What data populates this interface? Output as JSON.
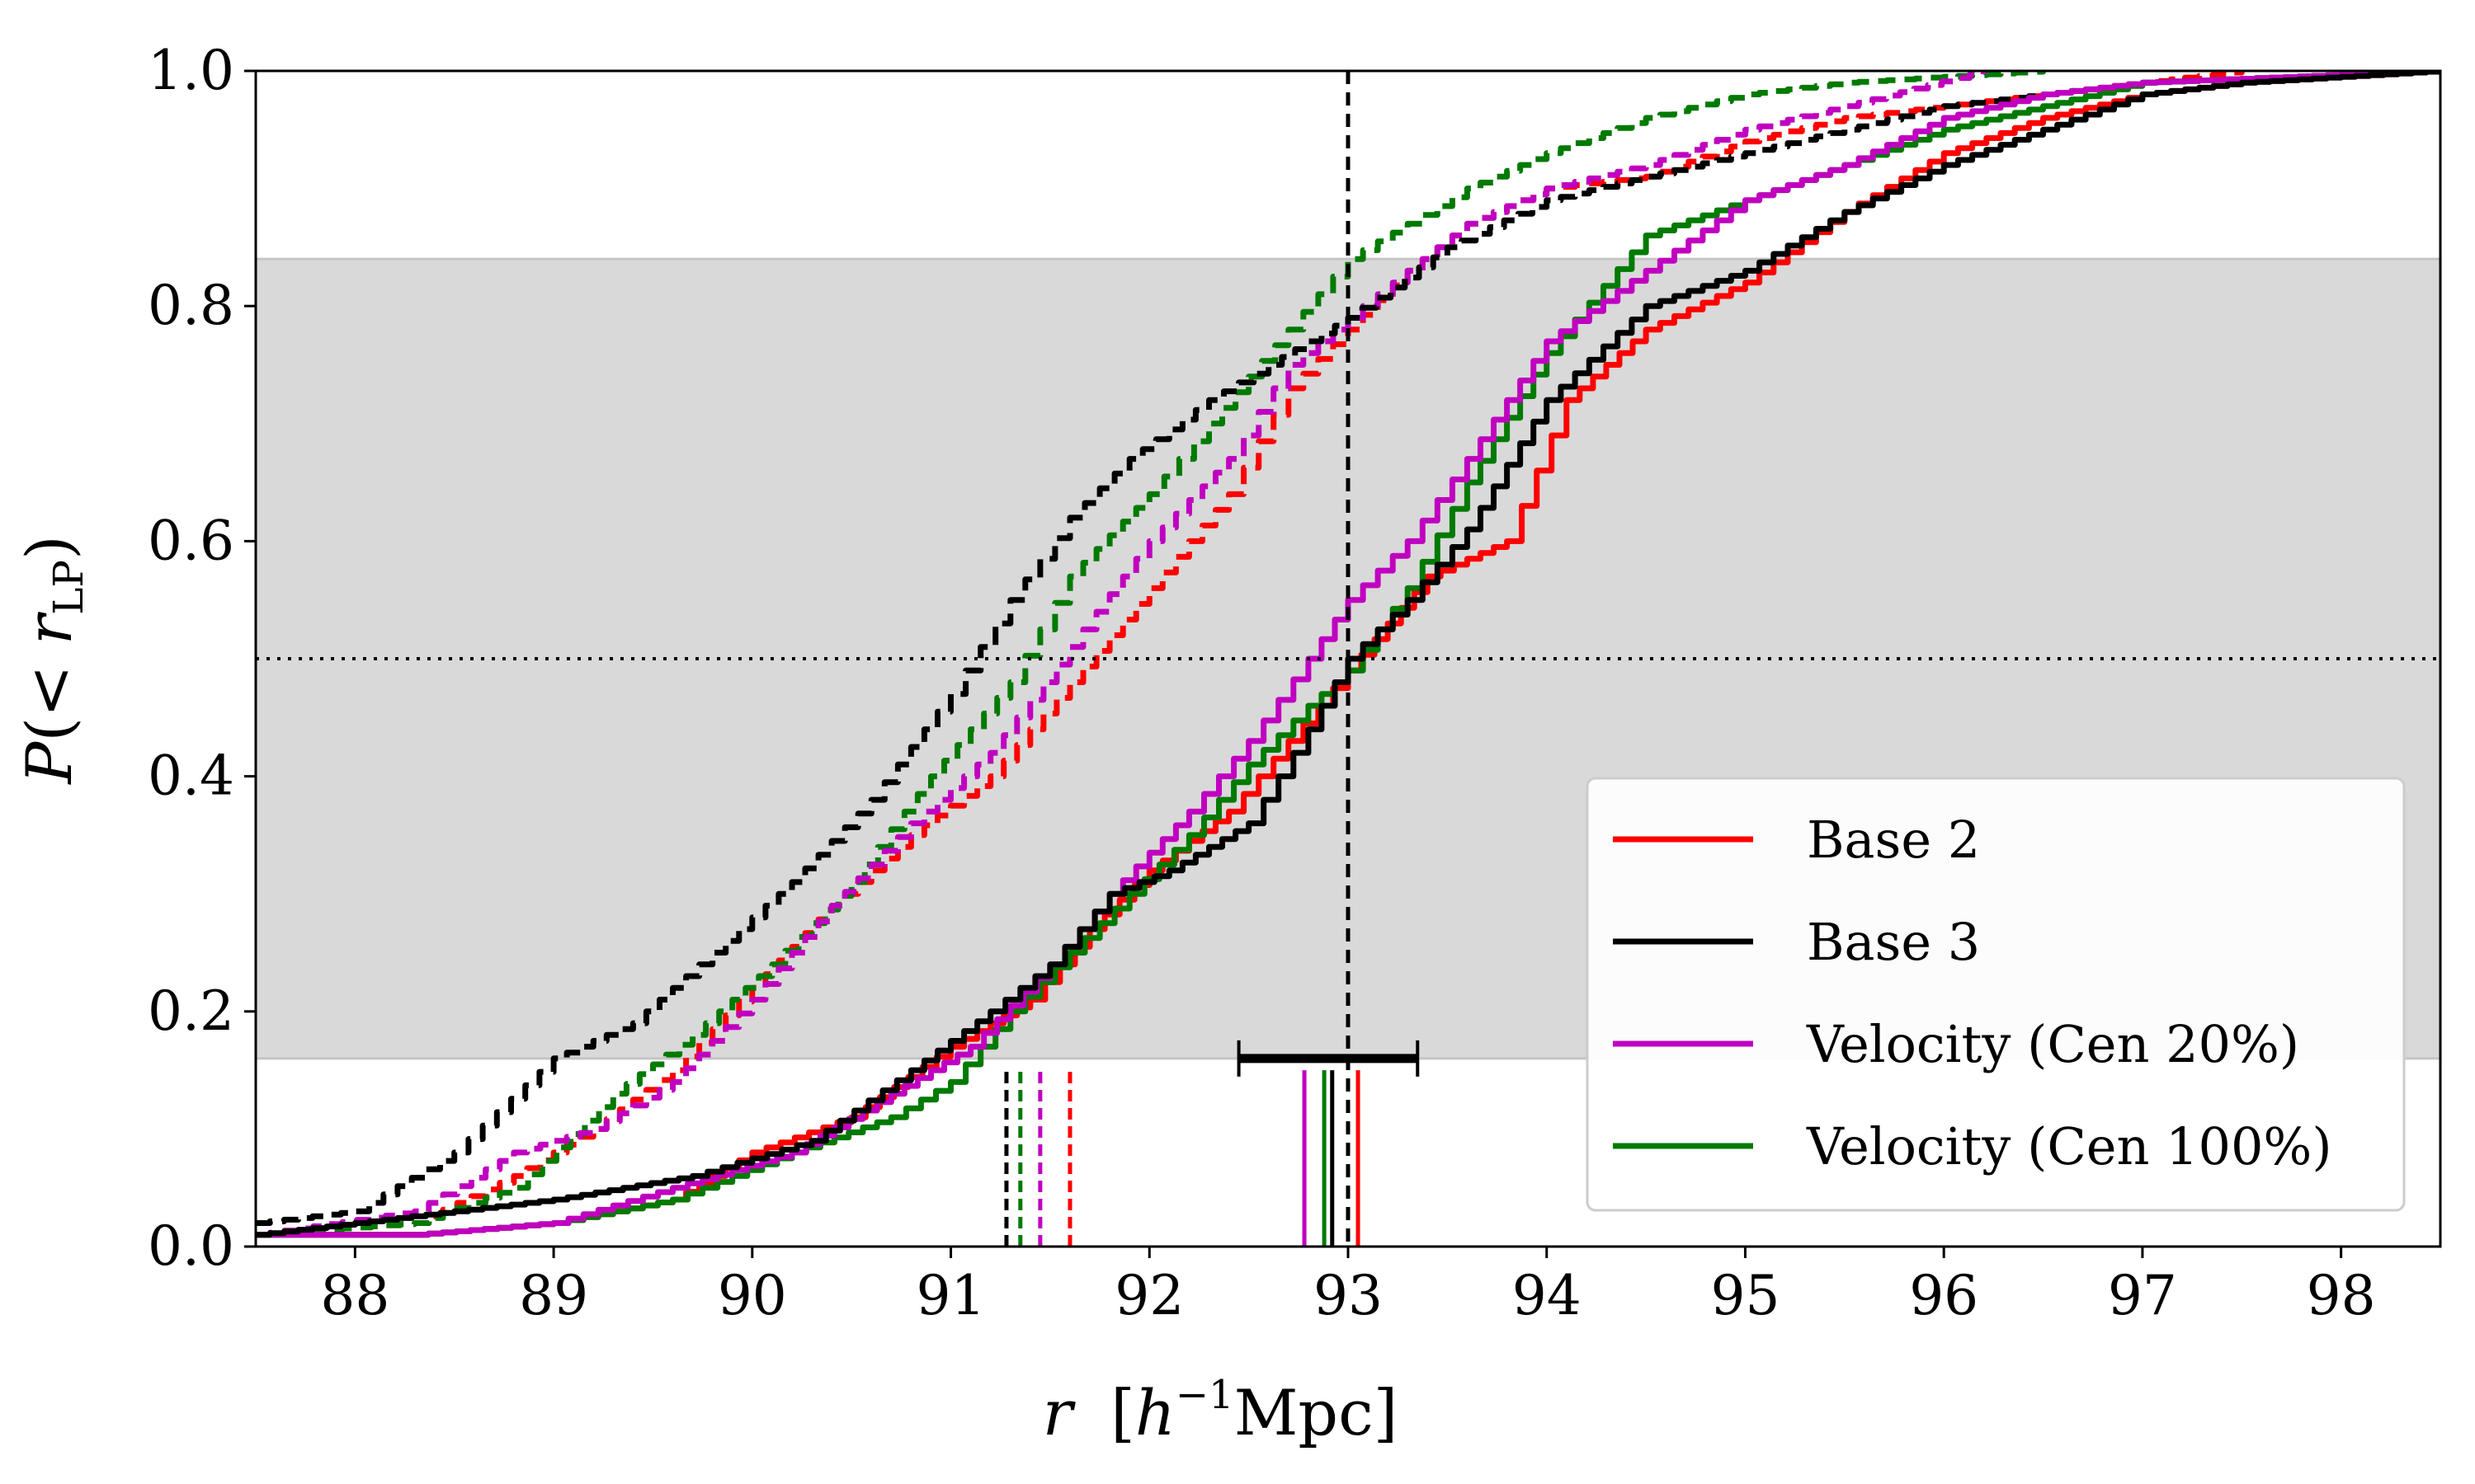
{
  "chart_data": {
    "type": "line",
    "title": "",
    "xlabel": {
      "var": "r",
      "bracket_open": "[",
      "h": "h",
      "exp": "−1",
      "unit": "Mpc",
      "bracket_close": "]"
    },
    "ylabel": {
      "P": "P",
      "paren_open": "(< ",
      "r": "r",
      "sub": "LP",
      "paren_close": ")"
    },
    "xlim": [
      87.5,
      98.5
    ],
    "ylim": [
      0.0,
      1.0
    ],
    "xticks": [
      88,
      89,
      90,
      91,
      92,
      93,
      94,
      95,
      96,
      97,
      98
    ],
    "yticks": [
      0.0,
      0.2,
      0.4,
      0.6,
      0.8,
      1.0
    ],
    "xtick_labels": [
      "88",
      "89",
      "90",
      "91",
      "92",
      "93",
      "94",
      "95",
      "96",
      "97",
      "98"
    ],
    "ytick_labels": [
      "0.0",
      "0.2",
      "0.4",
      "0.6",
      "0.8",
      "1.0"
    ],
    "band": {
      "y0": 0.16,
      "y1": 0.84,
      "color": "#d9d9d9"
    },
    "hline": {
      "y": 0.5,
      "style": "dotted",
      "color": "#000000"
    },
    "vline": {
      "x": 93.0,
      "style": "dashed",
      "color": "#000000"
    },
    "errorbar": {
      "x0": 92.45,
      "x1": 93.35,
      "y": 0.16,
      "color": "#000000"
    },
    "legend": {
      "position": "bottom-right"
    },
    "series": [
      {
        "name": "Base 2",
        "color": "#ff0000",
        "solid": [
          [
            87.5,
            0.01
          ],
          [
            88.3,
            0.01
          ],
          [
            89.0,
            0.02
          ],
          [
            89.6,
            0.04
          ],
          [
            90.0,
            0.08
          ],
          [
            90.5,
            0.11
          ],
          [
            91.0,
            0.17
          ],
          [
            91.4,
            0.21
          ],
          [
            91.7,
            0.27
          ],
          [
            92.0,
            0.32
          ],
          [
            92.4,
            0.37
          ],
          [
            92.7,
            0.43
          ],
          [
            93.0,
            0.49
          ],
          [
            93.4,
            0.57
          ],
          [
            93.8,
            0.6
          ],
          [
            94.1,
            0.72
          ],
          [
            94.5,
            0.78
          ],
          [
            95.0,
            0.82
          ],
          [
            95.5,
            0.88
          ],
          [
            96.0,
            0.93
          ],
          [
            96.5,
            0.96
          ],
          [
            97.0,
            0.98
          ],
          [
            97.5,
            0.99
          ],
          [
            98.5,
            1.0
          ]
        ],
        "dashed": [
          [
            87.5,
            0.01
          ],
          [
            88.3,
            0.02
          ],
          [
            88.8,
            0.06
          ],
          [
            89.2,
            0.1
          ],
          [
            89.6,
            0.15
          ],
          [
            90.0,
            0.22
          ],
          [
            90.4,
            0.29
          ],
          [
            90.8,
            0.35
          ],
          [
            91.2,
            0.4
          ],
          [
            91.6,
            0.48
          ],
          [
            92.0,
            0.56
          ],
          [
            92.4,
            0.64
          ],
          [
            92.7,
            0.73
          ],
          [
            93.0,
            0.78
          ],
          [
            93.3,
            0.83
          ],
          [
            93.6,
            0.87
          ],
          [
            94.0,
            0.9
          ],
          [
            94.5,
            0.91
          ],
          [
            95.0,
            0.94
          ],
          [
            95.5,
            0.96
          ],
          [
            96.0,
            0.97
          ],
          [
            96.5,
            0.98
          ],
          [
            97.0,
            0.99
          ],
          [
            97.5,
            1.0
          ]
        ],
        "median_solid": 93.05,
        "median_dashed": 91.6
      },
      {
        "name": "Base 3",
        "color": "#000000",
        "solid": [
          [
            87.5,
            0.01
          ],
          [
            88.0,
            0.02
          ],
          [
            88.5,
            0.03
          ],
          [
            89.0,
            0.04
          ],
          [
            89.7,
            0.06
          ],
          [
            90.3,
            0.09
          ],
          [
            90.8,
            0.15
          ],
          [
            91.2,
            0.2
          ],
          [
            91.5,
            0.24
          ],
          [
            91.8,
            0.3
          ],
          [
            92.1,
            0.32
          ],
          [
            92.5,
            0.36
          ],
          [
            92.8,
            0.44
          ],
          [
            93.0,
            0.5
          ],
          [
            93.3,
            0.55
          ],
          [
            93.6,
            0.61
          ],
          [
            94.0,
            0.72
          ],
          [
            94.5,
            0.8
          ],
          [
            95.0,
            0.83
          ],
          [
            95.5,
            0.88
          ],
          [
            96.0,
            0.92
          ],
          [
            96.5,
            0.95
          ],
          [
            97.0,
            0.98
          ],
          [
            97.5,
            0.99
          ],
          [
            98.5,
            1.0
          ]
        ],
        "dashed": [
          [
            87.5,
            0.02
          ],
          [
            88.0,
            0.03
          ],
          [
            88.5,
            0.08
          ],
          [
            89.0,
            0.16
          ],
          [
            89.4,
            0.19
          ],
          [
            89.8,
            0.25
          ],
          [
            90.2,
            0.31
          ],
          [
            90.6,
            0.38
          ],
          [
            91.0,
            0.47
          ],
          [
            91.3,
            0.55
          ],
          [
            91.6,
            0.62
          ],
          [
            91.9,
            0.67
          ],
          [
            92.3,
            0.72
          ],
          [
            92.6,
            0.75
          ],
          [
            93.0,
            0.79
          ],
          [
            93.5,
            0.85
          ],
          [
            94.0,
            0.89
          ],
          [
            94.5,
            0.91
          ],
          [
            95.0,
            0.93
          ],
          [
            95.5,
            0.95
          ],
          [
            96.0,
            0.97
          ],
          [
            96.5,
            0.98
          ],
          [
            97.0,
            0.99
          ],
          [
            98.5,
            1.0
          ]
        ],
        "median_solid": 92.92,
        "median_dashed": 91.28
      },
      {
        "name": "Velocity (Cen 20%)",
        "color": "#c000c0",
        "solid": [
          [
            87.5,
            0.01
          ],
          [
            88.3,
            0.01
          ],
          [
            89.0,
            0.02
          ],
          [
            89.6,
            0.05
          ],
          [
            90.2,
            0.08
          ],
          [
            90.7,
            0.13
          ],
          [
            91.1,
            0.17
          ],
          [
            91.5,
            0.24
          ],
          [
            91.8,
            0.3
          ],
          [
            92.2,
            0.37
          ],
          [
            92.5,
            0.43
          ],
          [
            92.8,
            0.5
          ],
          [
            93.0,
            0.55
          ],
          [
            93.3,
            0.6
          ],
          [
            93.6,
            0.67
          ],
          [
            94.0,
            0.77
          ],
          [
            94.5,
            0.83
          ],
          [
            95.0,
            0.89
          ],
          [
            95.5,
            0.92
          ],
          [
            96.0,
            0.96
          ],
          [
            96.5,
            0.98
          ],
          [
            97.0,
            0.99
          ],
          [
            98.5,
            1.0
          ]
        ],
        "dashed": [
          [
            87.5,
            0.01
          ],
          [
            88.3,
            0.03
          ],
          [
            88.8,
            0.08
          ],
          [
            89.2,
            0.1
          ],
          [
            89.6,
            0.14
          ],
          [
            90.0,
            0.21
          ],
          [
            90.4,
            0.29
          ],
          [
            90.8,
            0.36
          ],
          [
            91.2,
            0.42
          ],
          [
            91.6,
            0.51
          ],
          [
            92.0,
            0.6
          ],
          [
            92.4,
            0.67
          ],
          [
            92.7,
            0.75
          ],
          [
            93.0,
            0.79
          ],
          [
            93.3,
            0.83
          ],
          [
            93.6,
            0.87
          ],
          [
            94.0,
            0.9
          ],
          [
            94.5,
            0.92
          ],
          [
            95.0,
            0.95
          ],
          [
            95.5,
            0.97
          ],
          [
            96.2,
            1.0
          ]
        ],
        "median_solid": 92.78,
        "median_dashed": 91.45
      },
      {
        "name": "Velocity (Cen 100%)",
        "color": "#007a00",
        "solid": [
          [
            87.5,
            0.01
          ],
          [
            88.3,
            0.01
          ],
          [
            89.0,
            0.02
          ],
          [
            89.6,
            0.04
          ],
          [
            90.2,
            0.08
          ],
          [
            90.7,
            0.11
          ],
          [
            91.0,
            0.14
          ],
          [
            91.3,
            0.2
          ],
          [
            91.6,
            0.25
          ],
          [
            91.9,
            0.3
          ],
          [
            92.2,
            0.35
          ],
          [
            92.5,
            0.41
          ],
          [
            92.8,
            0.46
          ],
          [
            93.0,
            0.49
          ],
          [
            93.3,
            0.56
          ],
          [
            93.6,
            0.65
          ],
          [
            94.0,
            0.76
          ],
          [
            94.5,
            0.86
          ],
          [
            95.0,
            0.89
          ],
          [
            95.5,
            0.92
          ],
          [
            96.0,
            0.95
          ],
          [
            96.5,
            0.97
          ],
          [
            97.0,
            0.99
          ],
          [
            98.5,
            1.0
          ]
        ],
        "dashed": [
          [
            87.5,
            0.01
          ],
          [
            88.3,
            0.02
          ],
          [
            88.8,
            0.05
          ],
          [
            89.3,
            0.13
          ],
          [
            89.7,
            0.18
          ],
          [
            90.1,
            0.24
          ],
          [
            90.5,
            0.31
          ],
          [
            90.9,
            0.4
          ],
          [
            91.3,
            0.48
          ],
          [
            91.6,
            0.57
          ],
          [
            92.0,
            0.64
          ],
          [
            92.3,
            0.7
          ],
          [
            92.7,
            0.78
          ],
          [
            93.0,
            0.84
          ],
          [
            93.3,
            0.87
          ],
          [
            93.6,
            0.9
          ],
          [
            94.0,
            0.93
          ],
          [
            94.5,
            0.96
          ],
          [
            95.0,
            0.98
          ],
          [
            95.5,
            0.99
          ],
          [
            96.5,
            1.0
          ]
        ],
        "median_solid": 92.88,
        "median_dashed": 91.35
      }
    ]
  }
}
